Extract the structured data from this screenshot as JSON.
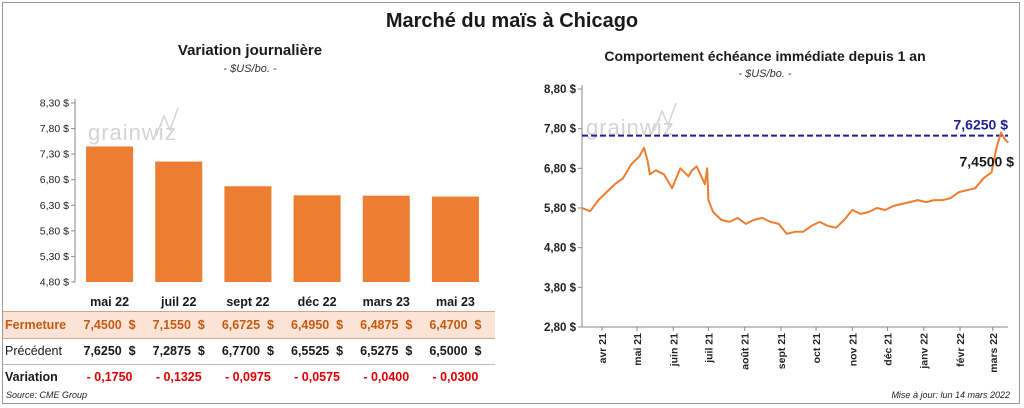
{
  "title": "Marché du maïs à Chicago",
  "left": {
    "subtitle": "Variation journalière",
    "unit": "- $US/bo. -",
    "watermark": "grainwiz",
    "table": {
      "rows": [
        {
          "label": "Fermeture",
          "values": [
            "7,4500  $",
            "7,1550  $",
            "6,6725  $",
            "6,4950  $",
            "6,4875  $",
            "6,4700  $"
          ]
        },
        {
          "label": "Précédent",
          "values": [
            "7,6250  $",
            "7,2875  $",
            "6,7700  $",
            "6,5525  $",
            "6,5275  $",
            "6,5000  $"
          ]
        },
        {
          "label": "Variation",
          "values": [
            "- 0,1750",
            "- 0,1325",
            "- 0,0975",
            "- 0,0575",
            "- 0,0400",
            "- 0,0300"
          ]
        }
      ]
    }
  },
  "right": {
    "subtitle": "Comportement  échéance immédiate depuis 1 an",
    "unit": "- $US/bo. -",
    "watermark": "grainwiz",
    "high_label": "7,6250 $",
    "last_label": "7,4500 $"
  },
  "footer": {
    "source": "Source: CME Group",
    "updated": "Mise à jour: lun 14 mars 2022"
  },
  "colors": {
    "bar": "#ed7d31",
    "line": "#ed7d31",
    "high": "#1f1f99",
    "negative": "#e00000",
    "fermeture_bg": "#fbe4d5"
  },
  "chart_data": [
    {
      "type": "bar",
      "categories": [
        "mai 22",
        "juil 22",
        "sept 22",
        "déc 22",
        "mars 23",
        "mai 23"
      ],
      "values": [
        7.45,
        7.155,
        6.6725,
        6.495,
        6.4875,
        6.47
      ],
      "title": "Variation journalière",
      "ylabel": "- $US/bo. -",
      "ylim": [
        4.8,
        8.3
      ],
      "yticks": [
        4.8,
        5.3,
        5.8,
        6.3,
        6.8,
        7.3,
        7.8,
        8.3
      ],
      "ytick_labels": [
        "4,80 $",
        "5,30 $",
        "5,80 $",
        "6,30 $",
        "6,80 $",
        "7,30 $",
        "7,80 $",
        "8,30 $"
      ]
    },
    {
      "type": "line",
      "title": "Comportement  échéance immédiate depuis 1 an",
      "ylabel": "- $US/bo. -",
      "ylim": [
        2.8,
        8.8
      ],
      "yticks": [
        2.8,
        3.8,
        4.8,
        5.8,
        6.8,
        7.8,
        8.8
      ],
      "ytick_labels": [
        "2,80 $",
        "3,80 $",
        "4,80 $",
        "5,80 $",
        "6,80 $",
        "7,80 $",
        "8,80 $"
      ],
      "xticks": [
        "2021-04-01",
        "2021-05-01",
        "2021-06-01",
        "2021-07-01",
        "2021-08-01",
        "2021-09-01",
        "2021-10-01",
        "2021-11-01",
        "2021-12-01",
        "2022-01-01",
        "2022-02-01",
        "2022-03-01"
      ],
      "xtick_labels": [
        "avr 21",
        "mai 21",
        "juin 21",
        "juil 21",
        "août 21",
        "sept 21",
        "oct 21",
        "nov 21",
        "déc 21",
        "janv 22",
        "févr 22",
        "mars 22"
      ],
      "xlim": [
        "2021-03-15",
        "2022-03-14"
      ],
      "reference_line": {
        "value": 7.625,
        "style": "dashed"
      },
      "last_value": 7.45,
      "series": [
        {
          "x": [
            "2021-03-15",
            "2021-03-22",
            "2021-03-29",
            "2021-04-05",
            "2021-04-12",
            "2021-04-19",
            "2021-04-26",
            "2021-05-03",
            "2021-05-07",
            "2021-05-10",
            "2021-05-12",
            "2021-05-17",
            "2021-05-24",
            "2021-05-31",
            "2021-06-07",
            "2021-06-14",
            "2021-06-17",
            "2021-06-21",
            "2021-06-28",
            "2021-06-30",
            "2021-07-01",
            "2021-07-05",
            "2021-07-12",
            "2021-07-19",
            "2021-07-26",
            "2021-08-02",
            "2021-08-09",
            "2021-08-16",
            "2021-08-23",
            "2021-08-30",
            "2021-09-06",
            "2021-09-13",
            "2021-09-20",
            "2021-09-27",
            "2021-10-04",
            "2021-10-11",
            "2021-10-18",
            "2021-10-25",
            "2021-11-01",
            "2021-11-08",
            "2021-11-15",
            "2021-11-22",
            "2021-11-29",
            "2021-12-06",
            "2021-12-13",
            "2021-12-20",
            "2021-12-27",
            "2022-01-03",
            "2022-01-10",
            "2022-01-17",
            "2022-01-24",
            "2022-01-31",
            "2022-02-07",
            "2022-02-14",
            "2022-02-21",
            "2022-02-28",
            "2022-03-04",
            "2022-03-08",
            "2022-03-11",
            "2022-03-14"
          ],
          "y": [
            5.8,
            5.72,
            6.0,
            6.2,
            6.4,
            6.55,
            6.9,
            7.1,
            7.32,
            7.0,
            6.65,
            6.75,
            6.65,
            6.3,
            6.8,
            6.6,
            6.75,
            6.85,
            6.4,
            6.8,
            6.0,
            5.7,
            5.5,
            5.45,
            5.55,
            5.4,
            5.5,
            5.55,
            5.45,
            5.4,
            5.15,
            5.2,
            5.2,
            5.35,
            5.45,
            5.35,
            5.3,
            5.5,
            5.75,
            5.65,
            5.7,
            5.8,
            5.75,
            5.85,
            5.9,
            5.95,
            6.0,
            5.95,
            6.0,
            6.0,
            6.05,
            6.2,
            6.25,
            6.3,
            6.55,
            6.7,
            7.3,
            7.7,
            7.55,
            7.45
          ]
        }
      ]
    }
  ]
}
